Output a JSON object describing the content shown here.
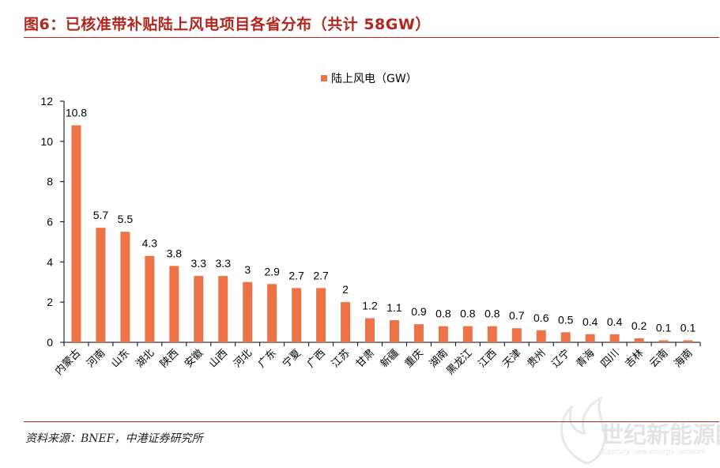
{
  "header": {
    "title": "图6：已核准带补贴陆上风电项目各省分布（共计 58GW）"
  },
  "footer": {
    "source": "资料来源：BNEF，中港证券研究所"
  },
  "watermark": {
    "main": "世纪新能源网",
    "sub": "Century new energy network"
  },
  "colors": {
    "accent": "#b3261e",
    "bar": "#ed7346"
  },
  "chart_data": {
    "type": "bar",
    "title": "",
    "xlabel": "",
    "ylabel": "",
    "ylim": [
      0,
      12
    ],
    "yticks": [
      0,
      2,
      4,
      6,
      8,
      10,
      12
    ],
    "grid": false,
    "legend_position": "top-center",
    "categories": [
      "内蒙古",
      "河南",
      "山东",
      "湖北",
      "陕西",
      "安徽",
      "山西",
      "河北",
      "广东",
      "宁夏",
      "广西",
      "江苏",
      "甘肃",
      "新疆",
      "重庆",
      "湖南",
      "黑龙江",
      "江西",
      "天津",
      "贵州",
      "辽宁",
      "青海",
      "四川",
      "吉林",
      "云南",
      "海南"
    ],
    "series": [
      {
        "name": "陆上风电（GW）",
        "values": [
          10.8,
          5.7,
          5.5,
          4.3,
          3.8,
          3.3,
          3.3,
          3,
          2.9,
          2.7,
          2.7,
          2,
          1.2,
          1.1,
          0.9,
          0.8,
          0.8,
          0.8,
          0.7,
          0.6,
          0.5,
          0.4,
          0.4,
          0.2,
          0.1,
          0.1
        ],
        "labels": [
          "10.8",
          "5.7",
          "5.5",
          "4.3",
          "3.8",
          "3.3",
          "3.3",
          "3",
          "2.9",
          "2.7",
          "2.7",
          "2",
          "1.2",
          "1.1",
          "0.9",
          "0.8",
          "0.8",
          "0.8",
          "0.7",
          "0.6",
          "0.5",
          "0.4",
          "0.4",
          "0.2",
          "0.1",
          "0.1"
        ]
      }
    ]
  }
}
